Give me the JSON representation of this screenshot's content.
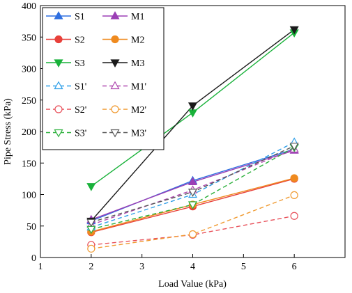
{
  "chart_data": {
    "type": "line",
    "xlabel": "Load Value (kPa)",
    "ylabel": "Pipe Stress (kPa)",
    "xlim": [
      1,
      7
    ],
    "ylim": [
      0,
      400
    ],
    "x_ticks": [
      "1",
      "2",
      "3",
      "4",
      "5",
      "6"
    ],
    "y_ticks": [
      "0",
      "50",
      "100",
      "150",
      "200",
      "250",
      "300",
      "350",
      "400"
    ],
    "grid": false,
    "legend_position": "top-left",
    "x": [
      2,
      4,
      6
    ],
    "series": [
      {
        "name": "S1",
        "values": [
          58,
          122,
          172
        ],
        "color": "#2f6fe0",
        "marker": "triangle-up",
        "filled": true,
        "dashed": false
      },
      {
        "name": "M1",
        "values": [
          60,
          120,
          170
        ],
        "color": "#9b3fb5",
        "marker": "triangle-up",
        "filled": true,
        "dashed": false
      },
      {
        "name": "S2",
        "values": [
          40,
          81,
          125
        ],
        "color": "#e8403a",
        "marker": "circle",
        "filled": true,
        "dashed": false
      },
      {
        "name": "M2",
        "values": [
          41,
          84,
          126
        ],
        "color": "#ef8a1f",
        "marker": "circle",
        "filled": true,
        "dashed": false
      },
      {
        "name": "S3",
        "values": [
          113,
          230,
          357
        ],
        "color": "#19b23a",
        "marker": "triangle-down",
        "filled": true,
        "dashed": false
      },
      {
        "name": "M3",
        "values": [
          58,
          241,
          362
        ],
        "color": "#1a1a1a",
        "marker": "triangle-down",
        "filled": true,
        "dashed": false
      },
      {
        "name": "S1'",
        "values": [
          48,
          100,
          183
        ],
        "color": "#2f9fe8",
        "marker": "triangle-up",
        "filled": false,
        "dashed": true
      },
      {
        "name": "M1'",
        "values": [
          52,
          107,
          172
        ],
        "color": "#b04ab0",
        "marker": "triangle-up",
        "filled": false,
        "dashed": true
      },
      {
        "name": "S2'",
        "values": [
          20,
          36,
          66
        ],
        "color": "#e8505a",
        "marker": "circle",
        "filled": false,
        "dashed": true
      },
      {
        "name": "M2'",
        "values": [
          14,
          37,
          99
        ],
        "color": "#f09a30",
        "marker": "circle",
        "filled": false,
        "dashed": true
      },
      {
        "name": "S3'",
        "values": [
          45,
          84,
          175
        ],
        "color": "#2ab03a",
        "marker": "triangle-down",
        "filled": false,
        "dashed": true
      },
      {
        "name": "M3'",
        "values": [
          56,
          104,
          177
        ],
        "color": "#555555",
        "marker": "triangle-down",
        "filled": false,
        "dashed": true
      }
    ]
  }
}
